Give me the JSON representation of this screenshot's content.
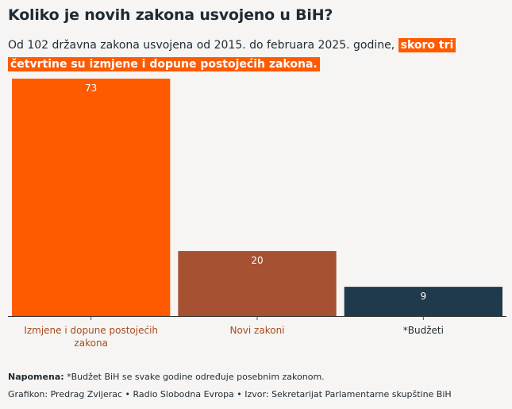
{
  "header": {
    "title": "Koliko je novih zakona usvojeno u BiH?",
    "subtitle_plain": "Od 102 državna zakona usvojena od 2015. do februara 2025. godine,",
    "subtitle_highlight": "skoro tri četvrtine su izmjene i dopune postojećih zakona."
  },
  "chart_data": {
    "type": "bar",
    "categories": [
      "Izmjene i dopune postojećih zakona",
      "Novi zakoni",
      "*Budžeti"
    ],
    "values": [
      73,
      20,
      9
    ],
    "colors": [
      "#ff5a00",
      "#a65131",
      "#1e3a4c"
    ],
    "label_colors": [
      "#a64b1d",
      "#a64b1d",
      "#1f2a33"
    ],
    "title": "",
    "xlabel": "",
    "ylabel": "",
    "ylim": [
      0,
      73
    ],
    "grid": false,
    "legend": "none"
  },
  "footer": {
    "note_label": "Napomena:",
    "note_text": " *Budžet BiH se svake godine određuje posebnim zakonom.",
    "credit": "Grafikon: Predrag Zvijerac • Radio Slobodna Evropa • Izvor: Sekretarijat Parlamentarne skupštine BiH"
  }
}
